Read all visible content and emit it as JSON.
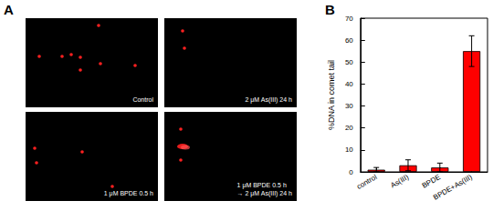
{
  "panel_labels": [
    "A",
    "B"
  ],
  "images": [
    {
      "caption": [
        "Control"
      ]
    },
    {
      "caption": [
        "2 μM As(III) 24 h"
      ]
    },
    {
      "caption": [
        "1 μM BPDE 0.5 h"
      ]
    },
    {
      "caption": [
        "1 μM BPDE 0.5 h",
        "→ 2 μM As(III) 24 h"
      ]
    }
  ],
  "chart_data": {
    "type": "bar",
    "categories": [
      "control",
      "As(III)",
      "BPDE",
      "BPDE+As(III)"
    ],
    "values": [
      1,
      3,
      2,
      55
    ],
    "errors": [
      1,
      2.5,
      2,
      7
    ],
    "color": "#ff0000",
    "y_label": "%DNA in comet tail",
    "ylim": [
      0,
      70
    ],
    "yticks": [
      0,
      10,
      20,
      30,
      40,
      50,
      60,
      70
    ],
    "grid": false
  }
}
